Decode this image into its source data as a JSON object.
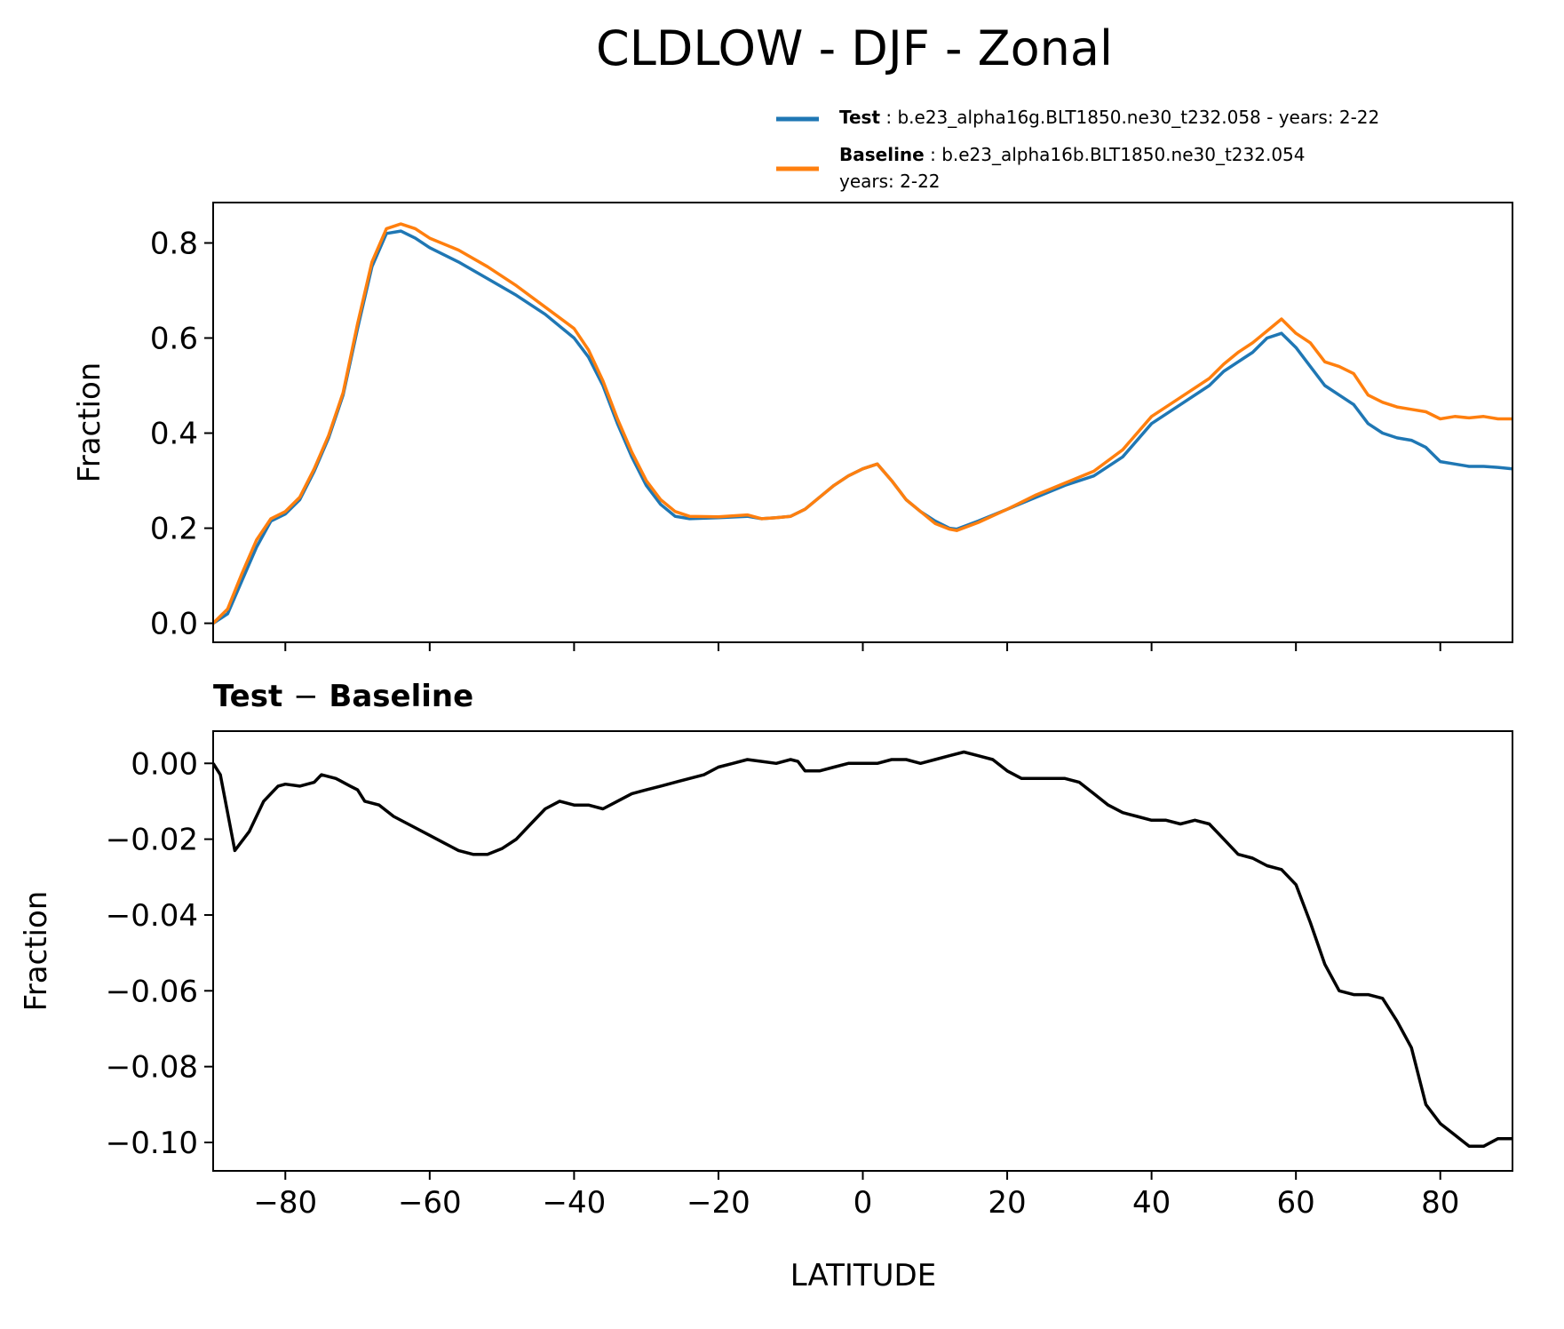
{
  "figure": {
    "title": "CLDLOW - DJF - Zonal",
    "xlabel": "LATITUDE"
  },
  "legend": {
    "test_label": "Test",
    "test_desc": ": b.e23_alpha16g.BLT1850.ne30_t232.058 - years: 2-22",
    "baseline_label": "Baseline",
    "baseline_desc": ": b.e23_alpha16b.BLT1850.ne30_t232.054",
    "baseline_desc2": "years: 2-22"
  },
  "colors": {
    "test": "#1f77b4",
    "baseline": "#ff7f0e",
    "diff": "#000000"
  },
  "chart_data": [
    {
      "type": "line",
      "title": "",
      "xlabel": "",
      "ylabel": "Fraction",
      "xlim": [
        -90,
        90
      ],
      "ylim": [
        -0.04,
        0.885
      ],
      "xticks": [
        -80,
        -60,
        -40,
        -20,
        0,
        20,
        40,
        60,
        80
      ],
      "yticks": [
        0.0,
        0.2,
        0.4,
        0.6,
        0.8
      ],
      "ytick_labels": [
        "0.0",
        "0.2",
        "0.4",
        "0.6",
        "0.8"
      ],
      "legend_position": "top-right (above axes)",
      "x": [
        -90,
        -88,
        -86,
        -84,
        -82,
        -80,
        -78,
        -76,
        -74,
        -72,
        -70,
        -68,
        -66,
        -64,
        -62,
        -60,
        -56,
        -52,
        -48,
        -44,
        -40,
        -38,
        -36,
        -34,
        -32,
        -30,
        -28,
        -26,
        -24,
        -20,
        -16,
        -14,
        -12,
        -10,
        -8,
        -6,
        -4,
        -2,
        0,
        2,
        4,
        6,
        8,
        10,
        12,
        13,
        16,
        20,
        24,
        28,
        32,
        36,
        40,
        44,
        48,
        50,
        52,
        54,
        56,
        58,
        60,
        62,
        64,
        66,
        68,
        70,
        72,
        74,
        76,
        78,
        80,
        82,
        84,
        86,
        88,
        90
      ],
      "series": [
        {
          "name": "Test",
          "values": [
            0.0,
            0.02,
            0.09,
            0.16,
            0.215,
            0.23,
            0.26,
            0.32,
            0.39,
            0.48,
            0.62,
            0.75,
            0.82,
            0.825,
            0.81,
            0.79,
            0.76,
            0.725,
            0.69,
            0.65,
            0.6,
            0.56,
            0.5,
            0.42,
            0.35,
            0.29,
            0.25,
            0.225,
            0.22,
            0.222,
            0.225,
            0.22,
            0.222,
            0.225,
            0.24,
            0.265,
            0.29,
            0.31,
            0.325,
            0.335,
            0.3,
            0.26,
            0.235,
            0.215,
            0.2,
            0.198,
            0.215,
            0.24,
            0.265,
            0.29,
            0.31,
            0.35,
            0.42,
            0.46,
            0.5,
            0.53,
            0.55,
            0.57,
            0.6,
            0.61,
            0.58,
            0.54,
            0.5,
            0.48,
            0.46,
            0.42,
            0.4,
            0.39,
            0.385,
            0.37,
            0.34,
            0.335,
            0.33,
            0.33,
            0.328,
            0.325
          ]
        },
        {
          "name": "Baseline",
          "values": [
            0.0,
            0.03,
            0.105,
            0.175,
            0.22,
            0.235,
            0.265,
            0.325,
            0.395,
            0.485,
            0.63,
            0.76,
            0.83,
            0.84,
            0.83,
            0.81,
            0.785,
            0.75,
            0.71,
            0.665,
            0.62,
            0.575,
            0.51,
            0.43,
            0.36,
            0.3,
            0.26,
            0.235,
            0.225,
            0.224,
            0.228,
            0.22,
            0.222,
            0.225,
            0.24,
            0.265,
            0.29,
            0.31,
            0.325,
            0.335,
            0.3,
            0.26,
            0.235,
            0.21,
            0.198,
            0.195,
            0.212,
            0.24,
            0.27,
            0.295,
            0.32,
            0.365,
            0.435,
            0.475,
            0.515,
            0.545,
            0.57,
            0.59,
            0.615,
            0.64,
            0.61,
            0.59,
            0.55,
            0.54,
            0.525,
            0.48,
            0.465,
            0.455,
            0.45,
            0.445,
            0.43,
            0.435,
            0.432,
            0.435,
            0.43,
            0.43
          ]
        }
      ]
    },
    {
      "type": "line",
      "title": "Test − Baseline",
      "title_part1": "Test",
      "title_sep": "−",
      "title_part2": "Baseline",
      "xlabel": "LATITUDE",
      "ylabel": "Fraction",
      "xlim": [
        -90,
        90
      ],
      "ylim": [
        -0.1075,
        0.0085
      ],
      "xticks": [
        -80,
        -60,
        -40,
        -20,
        0,
        20,
        40,
        60,
        80
      ],
      "xtick_labels": [
        "−80",
        "−60",
        "−40",
        "−20",
        "0",
        "20",
        "40",
        "60",
        "80"
      ],
      "yticks": [
        0.0,
        -0.02,
        -0.04,
        -0.06,
        -0.08,
        -0.1
      ],
      "ytick_labels": [
        "0.00",
        "−0.02",
        "−0.04",
        "−0.06",
        "−0.08",
        "−0.10"
      ],
      "x": [
        -90,
        -89,
        -87,
        -85,
        -83,
        -81,
        -80,
        -78,
        -76,
        -75,
        -73,
        -71,
        -70,
        -69,
        -67,
        -65,
        -63,
        -60,
        -58,
        -56,
        -54,
        -52,
        -50,
        -48,
        -46,
        -44,
        -42,
        -40,
        -38,
        -36,
        -34,
        -32,
        -30,
        -28,
        -26,
        -24,
        -22,
        -20,
        -18,
        -16,
        -14,
        -12,
        -10,
        -9,
        -8,
        -6,
        -4,
        -2,
        0,
        2,
        4,
        6,
        8,
        10,
        12,
        14,
        16,
        18,
        20,
        22,
        24,
        26,
        28,
        30,
        32,
        34,
        36,
        38,
        40,
        42,
        44,
        46,
        48,
        50,
        52,
        54,
        56,
        58,
        60,
        62,
        64,
        66,
        68,
        70,
        72,
        74,
        76,
        78,
        80,
        82,
        84,
        86,
        88,
        90
      ],
      "series": [
        {
          "name": "Test − Baseline",
          "values": [
            0.0,
            -0.003,
            -0.023,
            -0.018,
            -0.01,
            -0.006,
            -0.0055,
            -0.006,
            -0.005,
            -0.003,
            -0.004,
            -0.006,
            -0.007,
            -0.01,
            -0.011,
            -0.014,
            -0.016,
            -0.019,
            -0.021,
            -0.023,
            -0.024,
            -0.024,
            -0.0225,
            -0.02,
            -0.016,
            -0.012,
            -0.01,
            -0.011,
            -0.011,
            -0.012,
            -0.01,
            -0.008,
            -0.007,
            -0.006,
            -0.005,
            -0.004,
            -0.003,
            -0.001,
            0.0,
            0.001,
            0.0005,
            0.0,
            0.001,
            0.0005,
            -0.002,
            -0.002,
            -0.001,
            0.0,
            0.0,
            0.0,
            0.001,
            0.001,
            0.0,
            0.001,
            0.002,
            0.003,
            0.002,
            0.001,
            -0.002,
            -0.004,
            -0.004,
            -0.004,
            -0.004,
            -0.005,
            -0.008,
            -0.011,
            -0.013,
            -0.014,
            -0.015,
            -0.015,
            -0.016,
            -0.015,
            -0.016,
            -0.02,
            -0.024,
            -0.025,
            -0.027,
            -0.028,
            -0.032,
            -0.042,
            -0.053,
            -0.06,
            -0.061,
            -0.061,
            -0.062,
            -0.068,
            -0.075,
            -0.09,
            -0.095,
            -0.098,
            -0.101,
            -0.101,
            -0.099,
            -0.099
          ]
        }
      ]
    }
  ]
}
